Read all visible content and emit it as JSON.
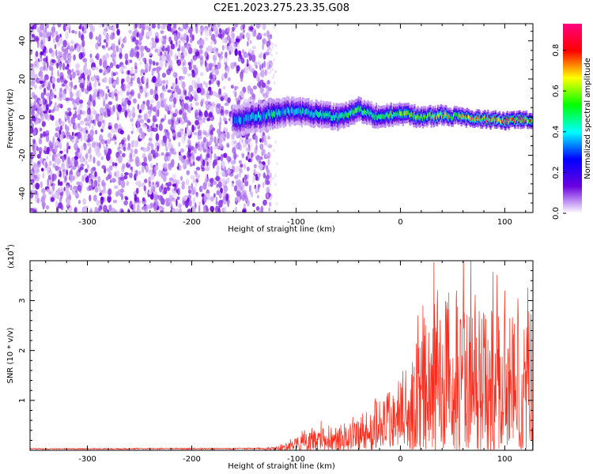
{
  "title": "C2E1.2023.275.23.35.G08",
  "chart_data": [
    {
      "type": "heatmap",
      "xlabel": "Height of straight line (km)",
      "ylabel": "Frequency (Hz)",
      "xlim": [
        -355,
        127
      ],
      "ylim": [
        -50,
        49
      ],
      "xticks": [
        -300,
        -200,
        -100,
        0,
        100
      ],
      "yticks": [
        -40,
        -20,
        0,
        20,
        40
      ],
      "colorbar": {
        "label": "Normalized spectral amplitude",
        "range": [
          0.0,
          0.93
        ],
        "ticks": [
          0.0,
          0.2,
          0.4,
          0.6,
          0.8
        ],
        "colormap": [
          "#ffffff",
          "#6a00e0",
          "#0000ff",
          "#00ffff",
          "#00ff00",
          "#ffff00",
          "#ff0000",
          "#ff0080"
        ]
      },
      "noise_region_km": [
        -355,
        -130
      ],
      "signal_trace": {
        "x": [
          -160,
          -140,
          -120,
          -100,
          -80,
          -60,
          -40,
          -20,
          0,
          20,
          40,
          60,
          80,
          100,
          127
        ],
        "y": [
          -2,
          0,
          2,
          3,
          2,
          0,
          4,
          0,
          2,
          0,
          1,
          0,
          -1,
          -2,
          -1
        ],
        "peak_amplitude": [
          0.35,
          0.4,
          0.45,
          0.4,
          0.45,
          0.5,
          0.55,
          0.5,
          0.6,
          0.6,
          0.65,
          0.7,
          0.75,
          0.85,
          0.75
        ]
      }
    },
    {
      "type": "line",
      "xlabel": "Height of straight line (km)",
      "ylabel": "SNR (10 * v/v)",
      "yscale_label": "(x10",
      "yscale_exp": "4",
      "yscale_close": ")",
      "xlim": [
        -355,
        127
      ],
      "ylim": [
        0,
        3.8
      ],
      "xticks": [
        -300,
        -200,
        -100,
        0,
        100
      ],
      "yticks": [
        1,
        2,
        3
      ],
      "color": "#ff2a1a",
      "envelope": {
        "x": [
          -355,
          -130,
          -115,
          -100,
          -80,
          -60,
          -40,
          -20,
          0,
          20,
          40,
          60,
          80,
          100,
          127
        ],
        "y": [
          0.04,
          0.05,
          0.12,
          0.3,
          0.5,
          0.6,
          0.85,
          1.2,
          1.8,
          2.8,
          3.9,
          3.5,
          3.3,
          3.4,
          3.3
        ]
      }
    }
  ]
}
